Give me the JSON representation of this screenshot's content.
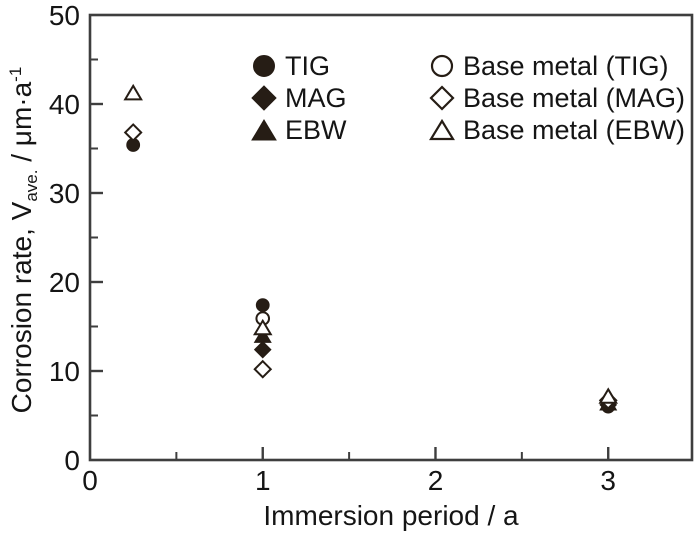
{
  "figure": {
    "background": "#ffffff",
    "axis_color": "#3e3e3e",
    "text_color": "#151515",
    "marker_color": "#261d15"
  },
  "axes": {
    "x_label": "Immersion period / a",
    "y_label_prefix": "Corrosion rate, V",
    "y_label_sub": "ave.",
    "y_label_mid": " / μm·a",
    "y_label_sup": "-1",
    "x_tick_labels": [
      "0",
      "1",
      "2",
      "3"
    ],
    "y_tick_labels": [
      "0",
      "10",
      "20",
      "30",
      "40",
      "50"
    ]
  },
  "legend": {
    "entries": [
      {
        "label": "TIG",
        "marker": "filled-circle"
      },
      {
        "label": "Base metal (TIG)",
        "marker": "open-circle"
      },
      {
        "label": "MAG",
        "marker": "filled-diamond"
      },
      {
        "label": "Base metal (MAG)",
        "marker": "open-diamond"
      },
      {
        "label": "EBW",
        "marker": "filled-triangle"
      },
      {
        "label": "Base metal (EBW)",
        "marker": "open-triangle"
      }
    ]
  },
  "chart_data": {
    "type": "scatter",
    "title": "",
    "xlabel": "Immersion period / a",
    "ylabel": "Corrosion rate, V_ave. / μm·a⁻¹",
    "xlim": [
      0,
      3.485
    ],
    "ylim": [
      0,
      50
    ],
    "grid": false,
    "legend_position": "upper-center-inside",
    "x_major_ticks": [
      0,
      1,
      2,
      3
    ],
    "x_minor_ticks": [
      0.5,
      1.5,
      2.5
    ],
    "y_major_ticks": [
      0,
      10,
      20,
      30,
      40,
      50
    ],
    "y_minor_ticks": [
      5,
      15,
      25,
      35,
      45
    ],
    "series": [
      {
        "name": "TIG",
        "marker": "circle",
        "filled": true,
        "points": [
          [
            0.25,
            35.4
          ],
          [
            1,
            17.4
          ],
          [
            3,
            6.0
          ]
        ]
      },
      {
        "name": "MAG",
        "marker": "diamond",
        "filled": true,
        "points": [
          [
            1,
            12.4
          ],
          [
            3,
            6.2
          ]
        ]
      },
      {
        "name": "EBW",
        "marker": "triangle",
        "filled": true,
        "points": [
          [
            1,
            13.9
          ],
          [
            3,
            6.3
          ]
        ]
      },
      {
        "name": "Base metal (TIG)",
        "marker": "circle",
        "filled": false,
        "points": [
          [
            1,
            15.9
          ],
          [
            3,
            6.5
          ]
        ]
      },
      {
        "name": "Base metal (MAG)",
        "marker": "diamond",
        "filled": false,
        "points": [
          [
            0.25,
            36.8
          ],
          [
            1,
            10.2
          ],
          [
            3,
            6.7
          ]
        ]
      },
      {
        "name": "Base metal (EBW)",
        "marker": "triangle",
        "filled": false,
        "points": [
          [
            0.25,
            41.2
          ],
          [
            1,
            14.8
          ],
          [
            3,
            7.1
          ]
        ]
      }
    ]
  }
}
